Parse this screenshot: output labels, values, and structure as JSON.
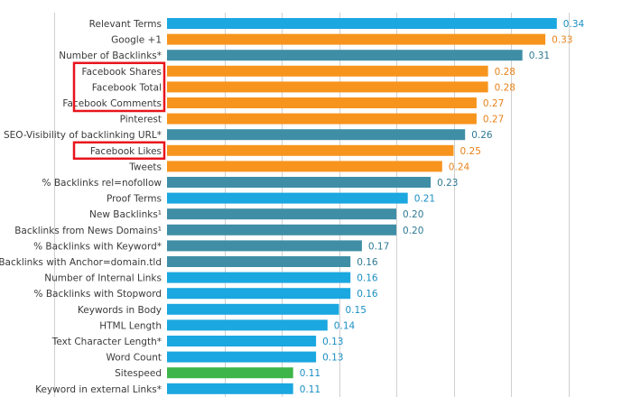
{
  "chart_data": {
    "type": "bar",
    "orientation": "horizontal",
    "title": "",
    "xlabel": "",
    "ylabel": "",
    "grid": true,
    "xlim": [
      0,
      0.36
    ],
    "categories": [
      "Relevant Terms",
      "Google +1",
      "Number of Backlinks*",
      "Facebook Shares",
      "Facebook Total",
      "Facebook Comments",
      "Pinterest",
      "Ø SEO-Visibility of backlinking URL*",
      "Facebook Likes",
      "Tweets",
      "% Backlinks rel=nofollow",
      "Proof Terms",
      "New Backlinks¹",
      "Backlinks from News Domains¹",
      "% Backlinks with Keyword*",
      "% Backlinks with Anchor=domain.tld",
      "Number of Internal Links",
      "% Backlinks with Stopword",
      "Keywords in Body",
      "HTML Length",
      "Text Character Length*",
      "Word Count",
      "Sitespeed",
      "Keyword in external Links*"
    ],
    "values": [
      0.34,
      0.33,
      0.31,
      0.28,
      0.28,
      0.27,
      0.27,
      0.26,
      0.25,
      0.24,
      0.23,
      0.21,
      0.2,
      0.2,
      0.17,
      0.16,
      0.16,
      0.16,
      0.15,
      0.14,
      0.13,
      0.13,
      0.11,
      0.11
    ],
    "value_labels": [
      "0.34",
      "0.33",
      "0.31",
      "0.28",
      "0.28",
      "0.27",
      "0.27",
      "0.26",
      "0.25",
      "0.24",
      "0.23",
      "0.21",
      "0.20",
      "0.20",
      "0.17",
      "0.16",
      "0.16",
      "0.16",
      "0.15",
      "0.14",
      "0.13",
      "0.13",
      "0.11",
      "0.11"
    ],
    "bar_colors": [
      "blue",
      "orange",
      "teal",
      "orange",
      "orange",
      "orange",
      "orange",
      "teal",
      "orange",
      "orange",
      "teal",
      "blue",
      "teal",
      "teal",
      "teal",
      "teal",
      "blue",
      "blue",
      "blue",
      "blue",
      "blue",
      "blue",
      "green",
      "blue"
    ],
    "palette": {
      "blue": "#1ba7e0",
      "orange": "#f7941d",
      "teal": "#3f8ea6",
      "green": "#3db54a"
    },
    "label_colors": {
      "blue": "#1a8fc4",
      "orange": "#e8821a",
      "teal": "#2f7a93",
      "green": "#1a8fc4"
    },
    "highlighted": [
      "Facebook Shares",
      "Facebook Total",
      "Facebook Comments",
      "Facebook Likes"
    ],
    "highlight_color": "#e8141c"
  }
}
